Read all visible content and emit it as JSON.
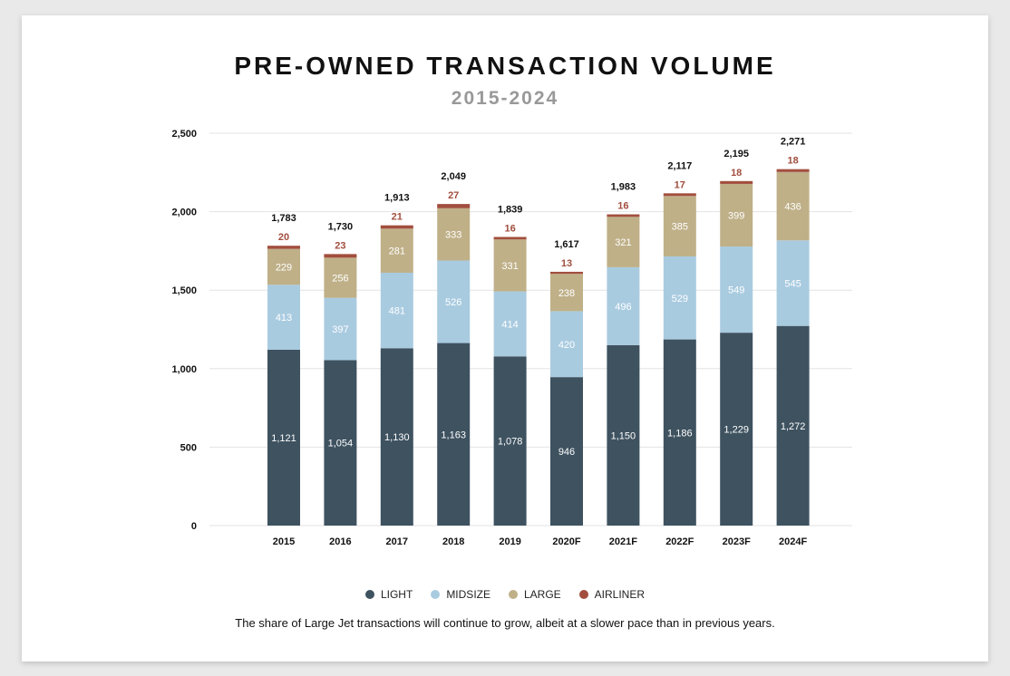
{
  "chart_data": {
    "type": "bar",
    "stacked": true,
    "title": "PRE-OWNED TRANSACTION VOLUME",
    "subtitle": "2015-2024",
    "categories": [
      "2015",
      "2016",
      "2017",
      "2018",
      "2019",
      "2020F",
      "2021F",
      "2022F",
      "2023F",
      "2024F"
    ],
    "series": [
      {
        "name": "LIGHT",
        "color": "#3e5260",
        "values": [
          1121,
          1054,
          1130,
          1163,
          1078,
          946,
          1150,
          1186,
          1229,
          1272
        ]
      },
      {
        "name": "MIDSIZE",
        "color": "#a9cbe0",
        "values": [
          413,
          397,
          481,
          526,
          414,
          420,
          496,
          529,
          549,
          545
        ]
      },
      {
        "name": "LARGE",
        "color": "#bfb088",
        "values": [
          229,
          256,
          281,
          333,
          331,
          238,
          321,
          385,
          399,
          436
        ]
      },
      {
        "name": "AIRLINER",
        "color": "#a24e3e",
        "values": [
          20,
          23,
          21,
          27,
          16,
          13,
          16,
          17,
          18,
          18
        ]
      }
    ],
    "totals": [
      1783,
      1730,
      1913,
      2049,
      1839,
      1617,
      1983,
      2117,
      2195,
      2271
    ],
    "total_labels": [
      "1,783",
      "1,730",
      "1,913",
      "2,049",
      "1,839",
      "1,617",
      "1,983",
      "2,117",
      "2,195",
      "2,271"
    ],
    "value_labels": [
      [
        "1,121",
        "1,054",
        "1,130",
        "1,163",
        "1,078",
        "946",
        "1,150",
        "1,186",
        "1,229",
        "1,272"
      ],
      [
        "413",
        "397",
        "481",
        "526",
        "414",
        "420",
        "496",
        "529",
        "549",
        "545"
      ],
      [
        "229",
        "256",
        "281",
        "333",
        "331",
        "238",
        "321",
        "385",
        "399",
        "436"
      ],
      [
        "20",
        "23",
        "21",
        "27",
        "16",
        "13",
        "16",
        "17",
        "18",
        "18"
      ]
    ],
    "ylim": [
      0,
      2500
    ],
    "yticks": [
      0,
      500,
      1000,
      1500,
      2000,
      2500
    ],
    "ytick_labels": [
      "0",
      "500",
      "1,000",
      "1,500",
      "2,000",
      "2,500"
    ],
    "grid": true,
    "legend_position": "bottom",
    "xlabel": "",
    "ylabel": ""
  },
  "note": "The share of Large Jet transactions will continue to grow, albeit at a slower pace than in previous years."
}
